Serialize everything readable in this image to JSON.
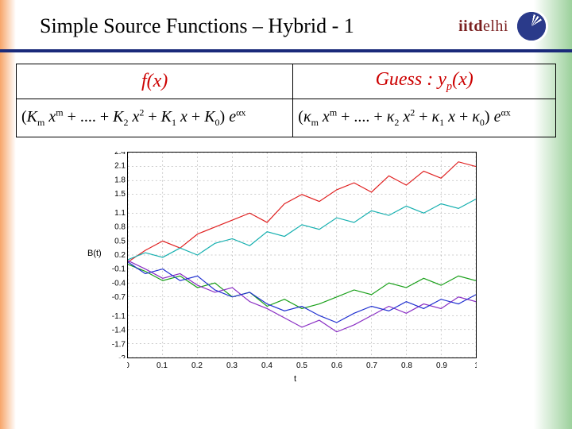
{
  "title": "Simple Source Functions – Hybrid - 1",
  "brand": {
    "iitd": "iitd",
    "elhi": "elhi"
  },
  "table": {
    "head_fx": "f(x)",
    "head_gx_prefix": "Guess : ",
    "head_gx_var": "y",
    "head_gx_sub": "p",
    "head_gx_arg": "(x)",
    "fx_expr_parts": [
      "(K",
      "m",
      " x",
      "m",
      " + .... + K",
      "2",
      " x",
      "2",
      " + K",
      "1",
      " x + K",
      "0",
      ") e",
      "αx"
    ],
    "gx_expr_parts": [
      "(κ",
      "m",
      " x",
      "m",
      " + .... + κ",
      "2",
      " x",
      "2",
      " + κ",
      "1",
      " x + κ",
      "0",
      ") e",
      "αx"
    ]
  },
  "chart": {
    "type": "line",
    "xlabel": "t",
    "ylabel": "B(t)",
    "xlim": [
      0,
      1
    ],
    "xticks": [
      0,
      0.1,
      0.2,
      0.3,
      0.4,
      0.5,
      0.6,
      0.7,
      0.8,
      0.9,
      1
    ],
    "ylim": [
      -2,
      2.4
    ],
    "yticks": [
      -2,
      -1.7,
      -1.4,
      -1.1,
      -0.7,
      -0.4,
      -0.1,
      0.2,
      0.5,
      0.8,
      1.1,
      1.5,
      1.8,
      2.1,
      2.4
    ],
    "bg": "#ffffff",
    "grid": "#bfbfbf",
    "axis": "#000000",
    "label_fontsize": 10,
    "series": [
      {
        "name": "red",
        "color": "#e02020",
        "width": 1.2,
        "y": [
          0.05,
          0.3,
          0.5,
          0.35,
          0.65,
          0.8,
          0.95,
          1.1,
          0.9,
          1.3,
          1.5,
          1.35,
          1.6,
          1.75,
          1.55,
          1.9,
          1.7,
          2.0,
          1.85,
          2.2,
          2.1
        ]
      },
      {
        "name": "cyan",
        "color": "#17b0b0",
        "width": 1.2,
        "y": [
          0.1,
          0.25,
          0.15,
          0.35,
          0.2,
          0.45,
          0.55,
          0.4,
          0.7,
          0.6,
          0.85,
          0.75,
          1.0,
          0.9,
          1.15,
          1.05,
          1.25,
          1.1,
          1.3,
          1.2,
          1.4
        ]
      },
      {
        "name": "green",
        "color": "#1aa01a",
        "width": 1.2,
        "y": [
          0.0,
          -0.15,
          -0.35,
          -0.25,
          -0.5,
          -0.4,
          -0.7,
          -0.6,
          -0.9,
          -0.75,
          -0.95,
          -0.85,
          -0.7,
          -0.55,
          -0.65,
          -0.4,
          -0.5,
          -0.3,
          -0.45,
          -0.25,
          -0.35
        ]
      },
      {
        "name": "purple",
        "color": "#8a2fc4",
        "width": 1.2,
        "y": [
          0.08,
          -0.1,
          -0.3,
          -0.2,
          -0.45,
          -0.6,
          -0.5,
          -0.8,
          -0.95,
          -1.15,
          -1.35,
          -1.2,
          -1.45,
          -1.3,
          -1.1,
          -0.9,
          -1.05,
          -0.85,
          -0.95,
          -0.7,
          -0.8
        ]
      },
      {
        "name": "blue",
        "color": "#2030d0",
        "width": 1.2,
        "y": [
          0.05,
          -0.2,
          -0.1,
          -0.35,
          -0.25,
          -0.55,
          -0.7,
          -0.6,
          -0.85,
          -1.0,
          -0.9,
          -1.1,
          -1.25,
          -1.05,
          -0.9,
          -1.0,
          -0.8,
          -0.95,
          -0.75,
          -0.85,
          -0.65
        ]
      }
    ]
  }
}
